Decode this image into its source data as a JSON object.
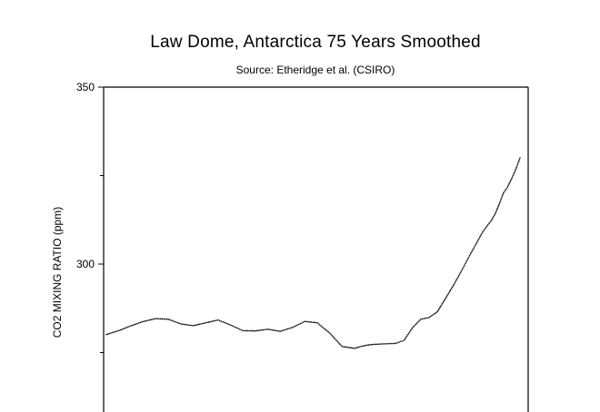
{
  "chart_data": {
    "type": "scatter",
    "title": "Law Dome, Antarctica 75 Years Smoothed",
    "subtitle": "Source: Etheridge et al. (CSIRO)",
    "xlabel": "",
    "ylabel": "CO2 MIXING RATIO  (ppm)",
    "ylim": [
      260,
      350
    ],
    "yticks": [
      350,
      300
    ],
    "y_tick_labels": [
      "350",
      "300"
    ],
    "ytick_minor": [
      325,
      275
    ],
    "xlim": [
      0,
      100
    ],
    "grid": false,
    "legend": "none",
    "marker_color": "#000000",
    "series": [
      {
        "x": [
          0,
          3,
          6,
          9,
          12,
          15,
          18,
          21,
          24,
          27,
          30,
          33,
          36,
          39,
          42,
          45,
          48,
          51,
          54,
          57,
          60,
          61.5,
          63,
          64.5,
          66,
          68,
          70,
          72,
          74,
          76,
          78,
          80,
          82,
          84,
          85,
          86,
          87,
          88,
          89,
          90,
          91,
          92,
          93,
          94,
          95,
          96,
          97,
          98,
          99,
          100
        ],
        "y": [
          280.1,
          281.2,
          282.6,
          283.8,
          284.6,
          284.4,
          283.1,
          282.6,
          283.4,
          284.2,
          282.8,
          281.2,
          281.1,
          281.6,
          281.0,
          282.1,
          283.8,
          283.4,
          280.5,
          276.7,
          276.2,
          276.7,
          277.1,
          277.3,
          277.4,
          277.5,
          277.6,
          278.5,
          282.0,
          284.4,
          284.9,
          286.5,
          290.3,
          294.2,
          296.3,
          298.4,
          300.6,
          302.8,
          304.9,
          307.0,
          309.1,
          310.7,
          312.2,
          314.2,
          317.0,
          320.1,
          321.8,
          324.2,
          326.8,
          330.0
        ]
      }
    ]
  }
}
